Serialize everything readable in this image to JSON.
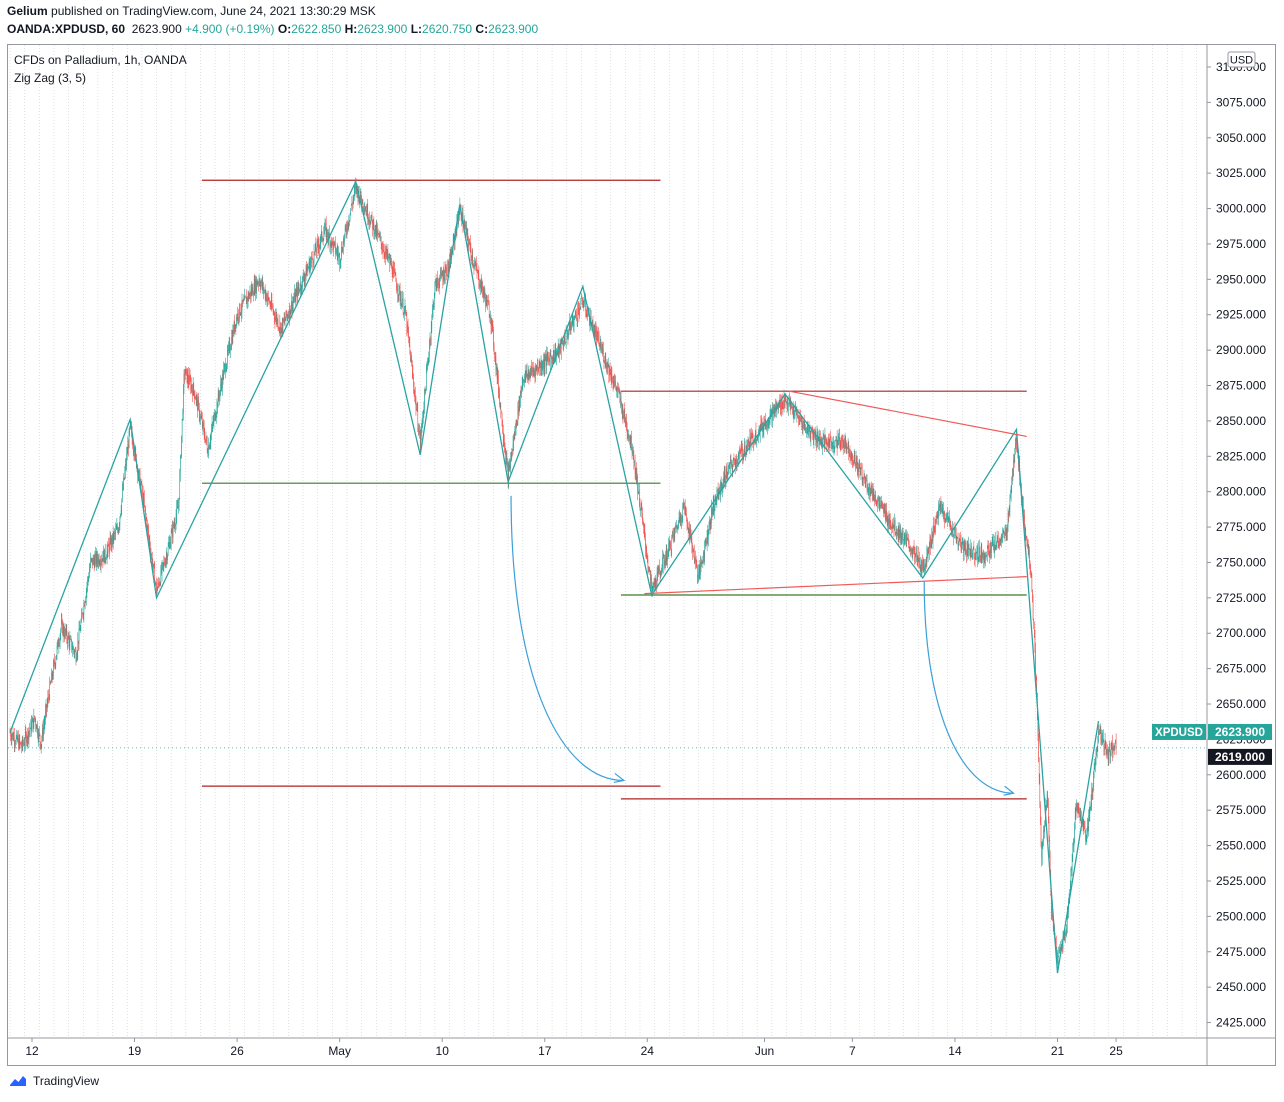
{
  "header": {
    "publisher": "Gelium",
    "published_text": "published on TradingView.com, June 24, 2021 13:30:29 MSK",
    "symbol": "OANDA:XPDUSD, 60",
    "last": "2623.900",
    "change": "+4.900 (+0.19%)",
    "o_label": "O:",
    "o": "2622.850",
    "h_label": "H:",
    "h": "2623.900",
    "l_label": "L:",
    "l": "2620.750",
    "c_label": "C:",
    "c": "2623.900"
  },
  "legend": {
    "instrument": "CFDs on Palladium, 1h, OANDA",
    "indicator": "Zig Zag (3, 5)"
  },
  "footer": {
    "brand": "TradingView"
  },
  "colors": {
    "up": "#26a69a",
    "down": "#ef5350",
    "zigzag": "#2aa3a3",
    "darkred_line": "#b22222",
    "green_line": "#3d7a2a",
    "wedge": "#f05a5a",
    "arrow": "#3aa0d8"
  },
  "chart_data": {
    "type": "candlestick",
    "currency_badge": "USD",
    "ylim": [
      2415,
      3115
    ],
    "y_ticks": [
      "3100.000",
      "3075.000",
      "3050.000",
      "3025.000",
      "3000.000",
      "2975.000",
      "2950.000",
      "2925.000",
      "2900.000",
      "2875.000",
      "2850.000",
      "2825.000",
      "2800.000",
      "2775.000",
      "2750.000",
      "2725.000",
      "2700.000",
      "2675.000",
      "2650.000",
      "2625.000",
      "2600.000",
      "2575.000",
      "2550.000",
      "2525.000",
      "2500.000",
      "2475.000",
      "2450.000",
      "2425.000"
    ],
    "x_ticks": [
      {
        "label": "12",
        "day": 0
      },
      {
        "label": "19",
        "day": 7
      },
      {
        "label": "26",
        "day": 14
      },
      {
        "label": "May",
        "day": 21
      },
      {
        "label": "10",
        "day": 28
      },
      {
        "label": "17",
        "day": 35
      },
      {
        "label": "24",
        "day": 42
      },
      {
        "label": "Jun",
        "day": 50
      },
      {
        "label": "7",
        "day": 56
      },
      {
        "label": "14",
        "day": 63
      },
      {
        "label": "21",
        "day": 70
      },
      {
        "label": "25",
        "day": 74
      }
    ],
    "price_labels": [
      {
        "text": "XPDUSD",
        "value": "2623.900",
        "price": 2623.9,
        "style": "green"
      },
      {
        "text": "",
        "value": "2619.000",
        "price": 2619.0,
        "style": "dark"
      }
    ],
    "zigzag": [
      {
        "day": -1.5,
        "price": 2630
      },
      {
        "day": 6.7,
        "price": 2851
      },
      {
        "day": 8.5,
        "price": 2725
      },
      {
        "day": 22.1,
        "price": 3019
      },
      {
        "day": 26.5,
        "price": 2826
      },
      {
        "day": 29.2,
        "price": 3003
      },
      {
        "day": 32.5,
        "price": 2807
      },
      {
        "day": 37.6,
        "price": 2945
      },
      {
        "day": 42.3,
        "price": 2727
      },
      {
        "day": 51.4,
        "price": 2869
      },
      {
        "day": 60.8,
        "price": 2739
      },
      {
        "day": 67.2,
        "price": 2844
      },
      {
        "day": 70.0,
        "price": 2460
      },
      {
        "day": 72.8,
        "price": 2638
      }
    ],
    "hlines": [
      {
        "price": 3020,
        "d0": 11.6,
        "d1": 42.9,
        "color": "darkred"
      },
      {
        "price": 2806,
        "d0": 11.6,
        "d1": 42.9,
        "color": "green"
      },
      {
        "price": 2592,
        "d0": 11.6,
        "d1": 42.9,
        "color": "darkred"
      },
      {
        "price": 2871,
        "d0": 40.2,
        "d1": 67.9,
        "color": "darkred"
      },
      {
        "price": 2727,
        "d0": 40.2,
        "d1": 67.9,
        "color": "green"
      },
      {
        "price": 2583,
        "d0": 40.2,
        "d1": 67.9,
        "color": "darkred"
      }
    ],
    "trendlines": [
      {
        "d0": 51.7,
        "p0": 2871,
        "d1": 67.9,
        "p1": 2839
      },
      {
        "d0": 41.8,
        "p0": 2728,
        "d1": 67.9,
        "p1": 2740
      }
    ],
    "arrows": [
      {
        "from": {
          "day": 32.7,
          "price": 2797
        },
        "to": {
          "day": 40.4,
          "price": 2596
        }
      },
      {
        "from": {
          "day": 60.9,
          "price": 2737
        },
        "to": {
          "day": 67.0,
          "price": 2587
        }
      }
    ],
    "price_path": [
      {
        "day": -1.5,
        "price": 2630
      },
      {
        "day": -0.7,
        "price": 2620
      },
      {
        "day": 0.2,
        "price": 2640
      },
      {
        "day": 0.6,
        "price": 2622
      },
      {
        "day": 1.2,
        "price": 2660
      },
      {
        "day": 2.0,
        "price": 2705
      },
      {
        "day": 3.0,
        "price": 2685
      },
      {
        "day": 4.0,
        "price": 2750
      },
      {
        "day": 5.0,
        "price": 2755
      },
      {
        "day": 5.9,
        "price": 2775
      },
      {
        "day": 6.7,
        "price": 2845
      },
      {
        "day": 7.5,
        "price": 2800
      },
      {
        "day": 8.5,
        "price": 2730
      },
      {
        "day": 9.3,
        "price": 2760
      },
      {
        "day": 10.0,
        "price": 2790
      },
      {
        "day": 10.4,
        "price": 2885
      },
      {
        "day": 11.1,
        "price": 2870
      },
      {
        "day": 12.0,
        "price": 2830
      },
      {
        "day": 13.0,
        "price": 2880
      },
      {
        "day": 14.0,
        "price": 2925
      },
      {
        "day": 15.5,
        "price": 2950
      },
      {
        "day": 17.0,
        "price": 2915
      },
      {
        "day": 18.5,
        "price": 2950
      },
      {
        "day": 20.0,
        "price": 2985
      },
      {
        "day": 21.0,
        "price": 2965
      },
      {
        "day": 22.1,
        "price": 3015
      },
      {
        "day": 23.2,
        "price": 2990
      },
      {
        "day": 24.5,
        "price": 2960
      },
      {
        "day": 25.5,
        "price": 2925
      },
      {
        "day": 26.5,
        "price": 2835
      },
      {
        "day": 27.5,
        "price": 2945
      },
      {
        "day": 28.5,
        "price": 2960
      },
      {
        "day": 29.2,
        "price": 3000
      },
      {
        "day": 30.2,
        "price": 2960
      },
      {
        "day": 31.3,
        "price": 2925
      },
      {
        "day": 32.5,
        "price": 2810
      },
      {
        "day": 33.5,
        "price": 2880
      },
      {
        "day": 34.8,
        "price": 2890
      },
      {
        "day": 36.0,
        "price": 2900
      },
      {
        "day": 37.6,
        "price": 2935
      },
      {
        "day": 38.7,
        "price": 2905
      },
      {
        "day": 40.0,
        "price": 2870
      },
      {
        "day": 41.0,
        "price": 2830
      },
      {
        "day": 42.3,
        "price": 2730
      },
      {
        "day": 43.5,
        "price": 2760
      },
      {
        "day": 44.5,
        "price": 2790
      },
      {
        "day": 45.5,
        "price": 2740
      },
      {
        "day": 46.5,
        "price": 2790
      },
      {
        "day": 47.5,
        "price": 2815
      },
      {
        "day": 49.0,
        "price": 2835
      },
      {
        "day": 50.5,
        "price": 2855
      },
      {
        "day": 51.4,
        "price": 2865
      },
      {
        "day": 52.8,
        "price": 2845
      },
      {
        "day": 54.0,
        "price": 2835
      },
      {
        "day": 55.5,
        "price": 2835
      },
      {
        "day": 57.0,
        "price": 2805
      },
      {
        "day": 58.5,
        "price": 2780
      },
      {
        "day": 60.0,
        "price": 2760
      },
      {
        "day": 60.8,
        "price": 2745
      },
      {
        "day": 62.0,
        "price": 2790
      },
      {
        "day": 63.5,
        "price": 2760
      },
      {
        "day": 65.0,
        "price": 2755
      },
      {
        "day": 66.5,
        "price": 2770
      },
      {
        "day": 67.2,
        "price": 2838
      },
      {
        "day": 67.7,
        "price": 2780
      },
      {
        "day": 68.2,
        "price": 2745
      },
      {
        "day": 68.6,
        "price": 2650
      },
      {
        "day": 68.9,
        "price": 2540
      },
      {
        "day": 69.3,
        "price": 2590
      },
      {
        "day": 69.6,
        "price": 2500
      },
      {
        "day": 70.0,
        "price": 2470
      },
      {
        "day": 70.6,
        "price": 2490
      },
      {
        "day": 71.3,
        "price": 2580
      },
      {
        "day": 72.0,
        "price": 2555
      },
      {
        "day": 72.8,
        "price": 2630
      },
      {
        "day": 73.5,
        "price": 2615
      },
      {
        "day": 74.0,
        "price": 2624
      }
    ]
  }
}
